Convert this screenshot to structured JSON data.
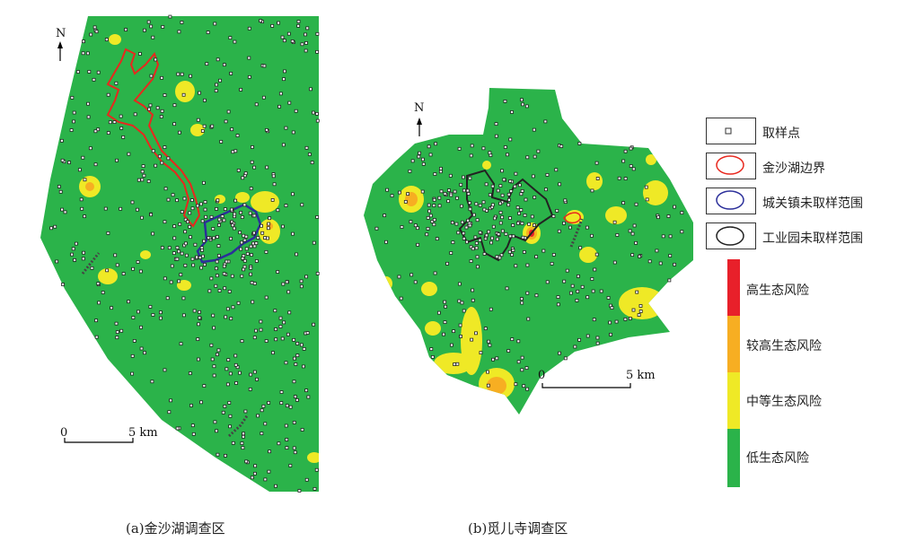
{
  "panels": [
    {
      "caption": "(a)金沙湖调查区",
      "north": "N",
      "scale": {
        "start": "0",
        "end": "5 km"
      }
    },
    {
      "caption": "(b)觅儿寺调查区",
      "north": "N",
      "scale": {
        "start": "0",
        "end": "5 km"
      }
    }
  ],
  "legend": {
    "symbols": [
      {
        "label": "取样点",
        "icon": "sample-point-icon",
        "color": "#333333"
      },
      {
        "label": "金沙湖边界",
        "icon": "red-boundary-icon",
        "color": "#e8281e"
      },
      {
        "label": "城关镇未取样范围",
        "icon": "blue-boundary-icon",
        "color": "#2b2f9a"
      },
      {
        "label": "工业园未取样范围",
        "icon": "black-boundary-icon",
        "color": "#222222"
      }
    ],
    "risk_levels": [
      {
        "label": "高生态风险",
        "color": "#e8202a"
      },
      {
        "label": "较高生态风险",
        "color": "#f7ae22"
      },
      {
        "label": "中等生态风险",
        "color": "#efe926"
      },
      {
        "label": "低生态风险",
        "color": "#2bb34a"
      }
    ]
  }
}
